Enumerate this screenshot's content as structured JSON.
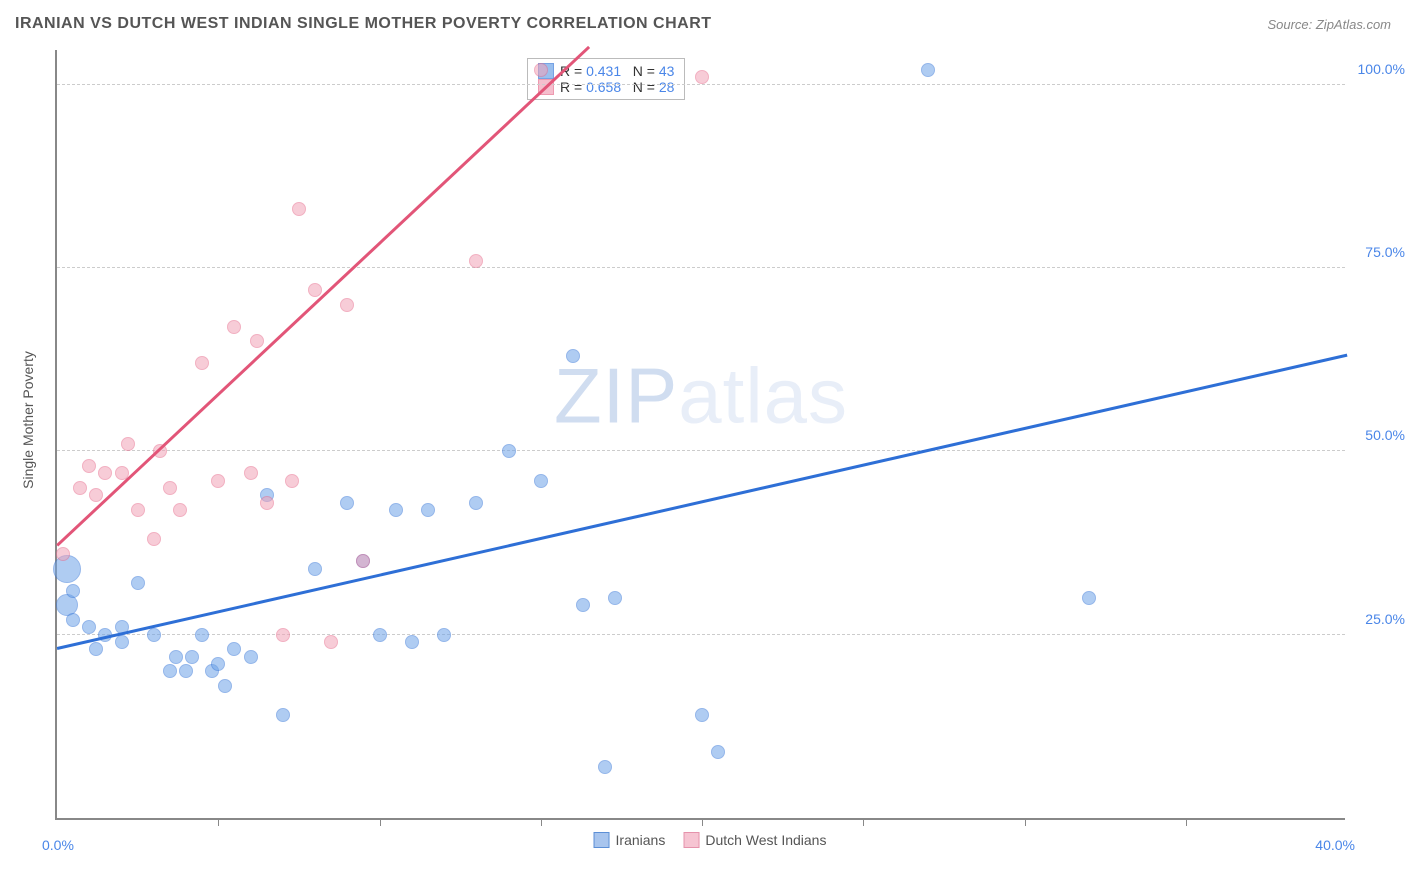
{
  "title": "IRANIAN VS DUTCH WEST INDIAN SINGLE MOTHER POVERTY CORRELATION CHART",
  "source": "Source: ZipAtlas.com",
  "y_axis_label": "Single Mother Poverty",
  "watermark_a": "ZIP",
  "watermark_b": "atlas",
  "chart": {
    "type": "scatter",
    "background_color": "#ffffff",
    "axis_color": "#888888",
    "grid_color": "#cccccc",
    "xlim": [
      0,
      40
    ],
    "ylim": [
      0,
      105
    ],
    "x_ticks": [
      5,
      10,
      15,
      20,
      25,
      30,
      35
    ],
    "y_ticks": [
      25,
      50,
      75,
      100
    ],
    "x_min_label": "0.0%",
    "x_max_label": "40.0%",
    "y_tick_labels": {
      "25": "25.0%",
      "50": "50.0%",
      "75": "75.0%",
      "100": "100.0%"
    },
    "marker_radius": 7,
    "marker_opacity": 0.55,
    "marker_border_opacity": 0.9,
    "series": [
      {
        "name": "Iranians",
        "color": "#6fa4e8",
        "border_color": "#3d7bd9",
        "r_value": "0.431",
        "n_value": "43",
        "trend": {
          "x1": 0,
          "y1": 23,
          "x2": 40,
          "y2": 63,
          "color": "#2e6fd6",
          "width": 2.5
        },
        "points": [
          {
            "x": 0.3,
            "y": 34,
            "r": 14
          },
          {
            "x": 0.3,
            "y": 29,
            "r": 11
          },
          {
            "x": 0.5,
            "y": 31
          },
          {
            "x": 0.5,
            "y": 27
          },
          {
            "x": 1,
            "y": 26
          },
          {
            "x": 1.2,
            "y": 23
          },
          {
            "x": 1.5,
            "y": 25
          },
          {
            "x": 2,
            "y": 24
          },
          {
            "x": 2,
            "y": 26
          },
          {
            "x": 2.5,
            "y": 32
          },
          {
            "x": 3,
            "y": 25
          },
          {
            "x": 3.5,
            "y": 20
          },
          {
            "x": 3.7,
            "y": 22
          },
          {
            "x": 4,
            "y": 20
          },
          {
            "x": 4.2,
            "y": 22
          },
          {
            "x": 4.5,
            "y": 25
          },
          {
            "x": 4.8,
            "y": 20
          },
          {
            "x": 5,
            "y": 21
          },
          {
            "x": 5.2,
            "y": 18
          },
          {
            "x": 5.5,
            "y": 23
          },
          {
            "x": 6,
            "y": 22
          },
          {
            "x": 6.5,
            "y": 44
          },
          {
            "x": 7,
            "y": 14
          },
          {
            "x": 8,
            "y": 34
          },
          {
            "x": 9,
            "y": 43
          },
          {
            "x": 9.5,
            "y": 35
          },
          {
            "x": 10,
            "y": 25
          },
          {
            "x": 10.5,
            "y": 42
          },
          {
            "x": 11,
            "y": 24
          },
          {
            "x": 11.5,
            "y": 42
          },
          {
            "x": 12,
            "y": 25
          },
          {
            "x": 13,
            "y": 43
          },
          {
            "x": 14,
            "y": 50
          },
          {
            "x": 15,
            "y": 46
          },
          {
            "x": 16,
            "y": 63
          },
          {
            "x": 16.3,
            "y": 29
          },
          {
            "x": 17,
            "y": 7
          },
          {
            "x": 17.3,
            "y": 30
          },
          {
            "x": 20,
            "y": 14
          },
          {
            "x": 20.5,
            "y": 9
          },
          {
            "x": 27,
            "y": 102
          },
          {
            "x": 32,
            "y": 30
          }
        ]
      },
      {
        "name": "Dutch West Indians",
        "color": "#f2a3b8",
        "border_color": "#e87090",
        "r_value": "0.658",
        "n_value": "28",
        "trend": {
          "x1": 0,
          "y1": 37,
          "x2": 16.5,
          "y2": 105,
          "color": "#e25578",
          "width": 2.5
        },
        "points": [
          {
            "x": 0.2,
            "y": 36
          },
          {
            "x": 0.7,
            "y": 45
          },
          {
            "x": 1,
            "y": 48
          },
          {
            "x": 1.2,
            "y": 44
          },
          {
            "x": 1.5,
            "y": 47
          },
          {
            "x": 2,
            "y": 47
          },
          {
            "x": 2.2,
            "y": 51
          },
          {
            "x": 2.5,
            "y": 42
          },
          {
            "x": 3,
            "y": 38
          },
          {
            "x": 3.2,
            "y": 50
          },
          {
            "x": 3.5,
            "y": 45
          },
          {
            "x": 3.8,
            "y": 42
          },
          {
            "x": 4.5,
            "y": 62
          },
          {
            "x": 5,
            "y": 46
          },
          {
            "x": 5.5,
            "y": 67
          },
          {
            "x": 6,
            "y": 47
          },
          {
            "x": 6.2,
            "y": 65
          },
          {
            "x": 6.5,
            "y": 43
          },
          {
            "x": 7,
            "y": 25
          },
          {
            "x": 7.3,
            "y": 46
          },
          {
            "x": 7.5,
            "y": 83
          },
          {
            "x": 8,
            "y": 72
          },
          {
            "x": 8.5,
            "y": 24
          },
          {
            "x": 9,
            "y": 70
          },
          {
            "x": 9.5,
            "y": 35
          },
          {
            "x": 13,
            "y": 76
          },
          {
            "x": 15,
            "y": 102
          },
          {
            "x": 20,
            "y": 101
          }
        ]
      }
    ],
    "legend_bottom": [
      {
        "label": "Iranians",
        "fill": "#a8c5ee",
        "stroke": "#5c8fd6"
      },
      {
        "label": "Dutch West Indians",
        "fill": "#f6c4d2",
        "stroke": "#e592ab"
      }
    ]
  }
}
